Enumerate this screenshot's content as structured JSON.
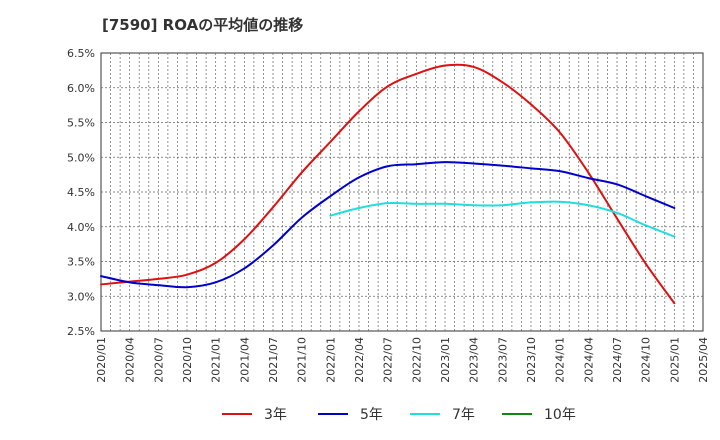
{
  "chart_data": {
    "type": "line",
    "title": "[7590]  ROAの平均値の推移",
    "xlabel": "",
    "ylabel": "",
    "x": [
      "2020/01",
      "2020/04",
      "2020/07",
      "2020/10",
      "2021/01",
      "2021/04",
      "2021/07",
      "2021/10",
      "2022/01",
      "2022/04",
      "2022/07",
      "2022/10",
      "2023/01",
      "2023/04",
      "2023/07",
      "2023/10",
      "2024/01",
      "2024/04",
      "2024/07",
      "2024/10",
      "2025/01",
      "2025/04"
    ],
    "ylim": [
      2.5,
      6.5
    ],
    "yticks": [
      "2.5%",
      "3.0%",
      "3.5%",
      "4.0%",
      "4.5%",
      "5.0%",
      "5.5%",
      "6.0%",
      "6.5%"
    ],
    "grid": true,
    "legend_position": "bottom",
    "series": [
      {
        "name": "3年",
        "color": "#dd1111",
        "values": [
          3.17,
          3.21,
          3.25,
          3.31,
          3.48,
          3.82,
          4.28,
          4.78,
          5.22,
          5.66,
          6.02,
          6.2,
          6.32,
          6.3,
          6.08,
          5.76,
          5.36,
          4.78,
          4.12,
          3.47,
          2.9,
          null
        ]
      },
      {
        "name": "5年",
        "color": "#0000cc",
        "values": [
          3.29,
          3.2,
          3.16,
          3.13,
          3.2,
          3.4,
          3.73,
          4.13,
          4.44,
          4.71,
          4.87,
          4.9,
          4.93,
          4.91,
          4.88,
          4.84,
          4.8,
          4.7,
          4.61,
          4.44,
          4.27,
          null
        ]
      },
      {
        "name": "7年",
        "color": "#22dddd",
        "values": [
          null,
          null,
          null,
          null,
          null,
          null,
          null,
          null,
          4.16,
          4.27,
          4.34,
          4.33,
          4.33,
          4.31,
          4.31,
          4.35,
          4.36,
          4.31,
          4.2,
          4.02,
          3.86,
          null
        ]
      },
      {
        "name": "10年",
        "color": "#118811",
        "values": [
          null,
          null,
          null,
          null,
          null,
          null,
          null,
          null,
          null,
          null,
          null,
          null,
          null,
          null,
          null,
          null,
          null,
          null,
          null,
          null,
          null,
          null
        ]
      }
    ]
  }
}
